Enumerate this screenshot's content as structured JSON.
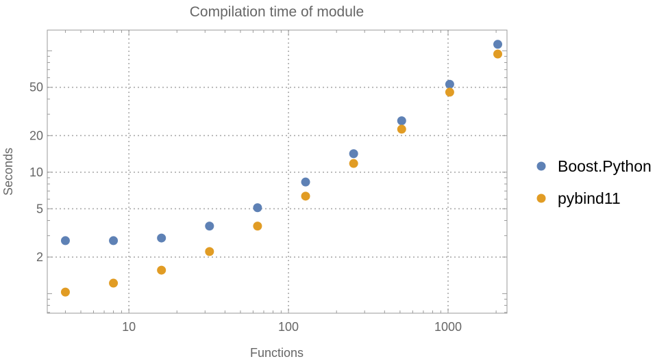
{
  "chart_data": {
    "type": "scatter",
    "title": "Compilation time of module",
    "xlabel": "Functions",
    "ylabel": "Seconds",
    "xscale": "log",
    "yscale": "log",
    "xlim": [
      3.08,
      2340
    ],
    "ylim": [
      0.69,
      148
    ],
    "grid": true,
    "legend_position": "right",
    "x_ticks": [
      {
        "value": 10,
        "label": "10"
      },
      {
        "value": 100,
        "label": "100"
      },
      {
        "value": 1000,
        "label": "1000"
      }
    ],
    "y_ticks": [
      {
        "value": 2,
        "label": "2"
      },
      {
        "value": 5,
        "label": "5"
      },
      {
        "value": 10,
        "label": "10"
      },
      {
        "value": 20,
        "label": "20"
      },
      {
        "value": 50,
        "label": "50"
      }
    ],
    "x": [
      4,
      8,
      16,
      32,
      64,
      128,
      256,
      512,
      1024,
      2048
    ],
    "series": [
      {
        "name": "Boost.Python",
        "color": "#5E81B5",
        "values": [
          2.73,
          2.73,
          2.87,
          3.6,
          5.1,
          8.3,
          14.2,
          26.5,
          53,
          113
        ]
      },
      {
        "name": "pybind11",
        "color": "#E19C24",
        "values": [
          1.03,
          1.22,
          1.56,
          2.22,
          3.6,
          6.35,
          11.8,
          22.6,
          45.6,
          94
        ]
      }
    ]
  }
}
